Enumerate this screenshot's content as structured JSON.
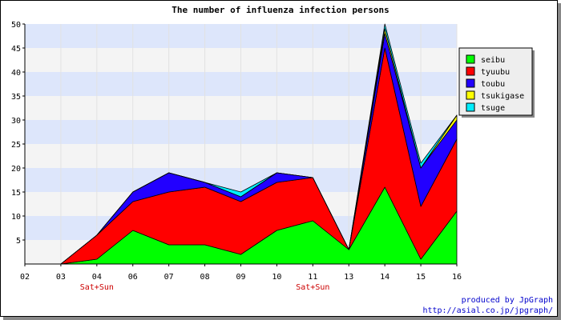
{
  "chart_data": {
    "type": "area",
    "stacked": true,
    "title": "The number of influenza infection persons",
    "xlabel": "",
    "ylabel": "",
    "categories": [
      "02",
      "03",
      "04",
      "06",
      "07",
      "08",
      "09",
      "10",
      "11",
      "13",
      "14",
      "15",
      "16"
    ],
    "weekend_labels": [
      {
        "category": "04",
        "text": "Sat+Sun"
      },
      {
        "category": "11",
        "text": "Sat+Sun"
      }
    ],
    "ylim": [
      0,
      50
    ],
    "yticks": [
      5,
      10,
      15,
      20,
      25,
      30,
      35,
      40,
      45,
      50
    ],
    "grid": "horizontal alternating bands",
    "legend_position": "right",
    "series": [
      {
        "name": "seibu",
        "color": "#00ff00",
        "values": [
          null,
          0,
          1,
          7,
          4,
          4,
          2,
          7,
          9,
          3,
          16,
          1,
          11
        ]
      },
      {
        "name": "tyuubu",
        "color": "#ff0000",
        "values": [
          null,
          0,
          5,
          6,
          11,
          12,
          11,
          10,
          9,
          0,
          29,
          11,
          15
        ]
      },
      {
        "name": "toubu",
        "color": "#2200ff",
        "values": [
          null,
          0,
          0,
          2,
          4,
          1,
          1,
          2,
          0,
          0,
          3,
          8,
          4
        ]
      },
      {
        "name": "tsukigase",
        "color": "#ffff00",
        "values": [
          null,
          0,
          0,
          0,
          0,
          0,
          0,
          0,
          0,
          0,
          1,
          0,
          1
        ]
      },
      {
        "name": "tsuge",
        "color": "#00eeff",
        "values": [
          null,
          0,
          0,
          0,
          0,
          0,
          1,
          0,
          0,
          0,
          1,
          1,
          0
        ]
      }
    ]
  },
  "credits": {
    "line1": "produced by JpGraph",
    "line2": "http://asial.co.jp/jpgraph/"
  }
}
